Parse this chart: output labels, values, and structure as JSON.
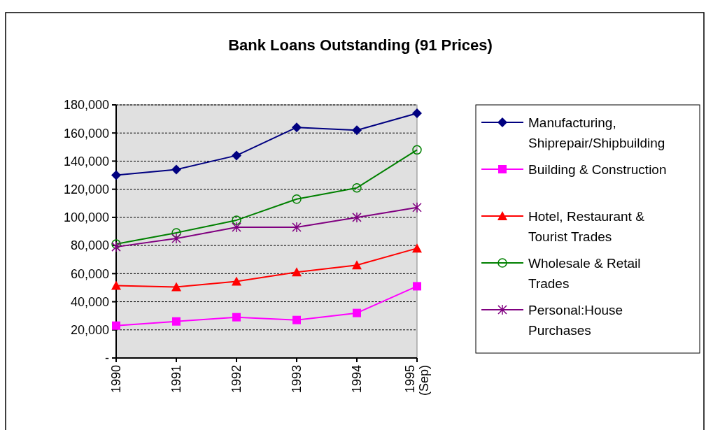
{
  "chart_data": {
    "type": "line",
    "title": "Bank Loans Outstanding (91 Prices)",
    "categories": [
      "1990",
      "1991",
      "1992",
      "1993",
      "1994",
      "1995 (Sep)"
    ],
    "series": [
      {
        "name": "Manufacturing, Shiprepair/Shipbuilding",
        "color": "#000080",
        "marker": "diamond",
        "values": [
          130000,
          134000,
          144000,
          164000,
          162000,
          174000
        ]
      },
      {
        "name": "Building & Construction",
        "color": "#ff00ff",
        "marker": "square",
        "values": [
          23000,
          26000,
          29000,
          27000,
          32000,
          51000
        ]
      },
      {
        "name": "Hotel, Restaurant & Tourist Trades",
        "color": "#ff0000",
        "marker": "triangle",
        "values": [
          51500,
          50500,
          54500,
          61000,
          66000,
          78000
        ]
      },
      {
        "name": "Wholesale & Retail Trades",
        "color": "#008000",
        "marker": "circle",
        "values": [
          81000,
          89000,
          98000,
          113000,
          121000,
          148000
        ]
      },
      {
        "name": "Personal:House Purchases",
        "color": "#800080",
        "marker": "cross",
        "values": [
          79000,
          85000,
          93000,
          93000,
          100000,
          107000
        ]
      }
    ],
    "ylim": [
      0,
      180000
    ],
    "yticks": [
      {
        "value": 0,
        "label": "-"
      },
      {
        "value": 20000,
        "label": "20,000"
      },
      {
        "value": 40000,
        "label": "40,000"
      },
      {
        "value": 60000,
        "label": "60,000"
      },
      {
        "value": 80000,
        "label": "80,000"
      },
      {
        "value": 100000,
        "label": "100,000"
      },
      {
        "value": 120000,
        "label": "120,000"
      },
      {
        "value": 140000,
        "label": "140,000"
      },
      {
        "value": 160000,
        "label": "160,000"
      },
      {
        "value": 180000,
        "label": "180,000"
      }
    ],
    "grid": "y",
    "legend": "right",
    "line_style": "solid"
  }
}
